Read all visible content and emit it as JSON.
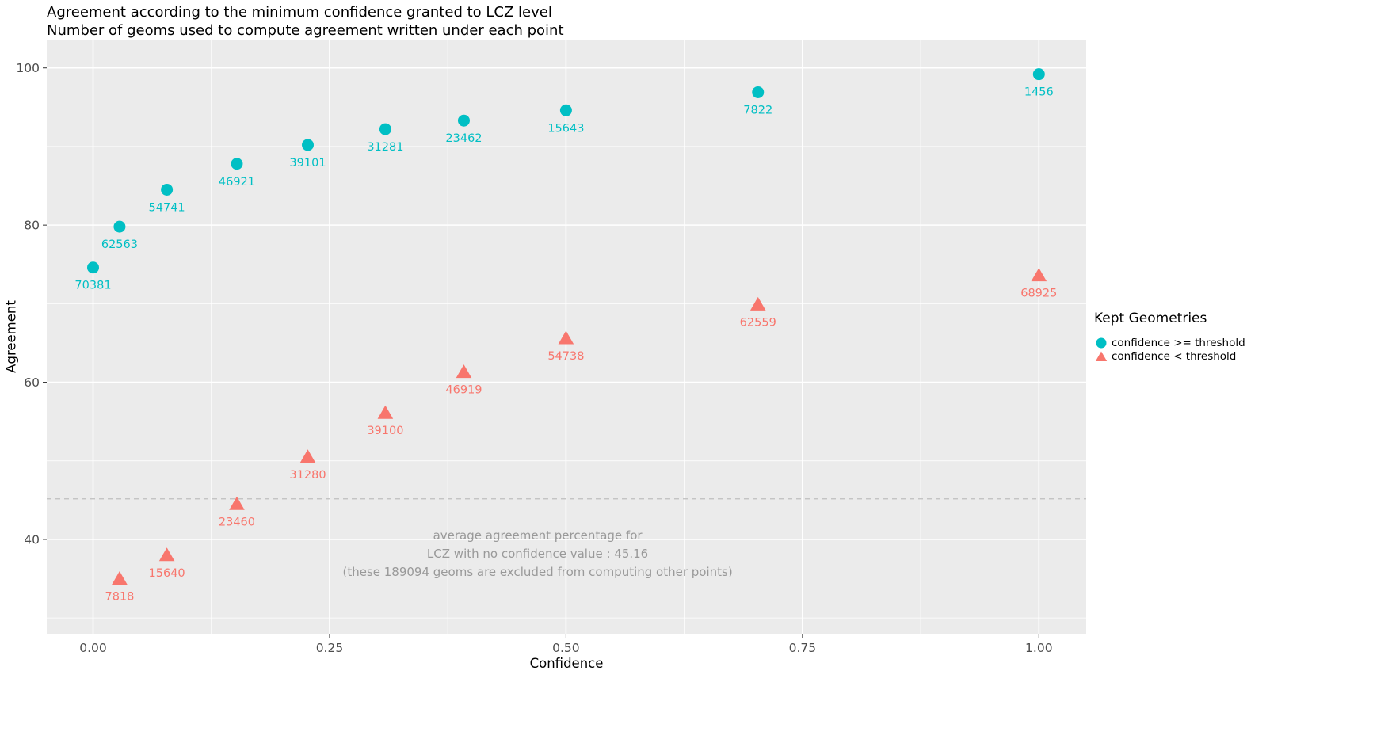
{
  "title_line1": "Agreement according to the minimum confidence granted to LCZ level",
  "title_line2": "Number of geoms used to compute agreement written under each point",
  "chart_data": {
    "type": "scatter",
    "title": "Agreement according to the minimum confidence granted to LCZ level",
    "subtitle": "Number of geoms used to compute agreement written under each point",
    "xlabel": "Confidence",
    "ylabel": "Agreement",
    "xlim": [
      -0.049,
      1.05
    ],
    "ylim": [
      28,
      103.5
    ],
    "x_ticks": [
      0.0,
      0.25,
      0.5,
      0.75,
      1.0
    ],
    "x_tick_labels": [
      "0.00",
      "0.25",
      "0.50",
      "0.75",
      "1.00"
    ],
    "y_ticks": [
      40,
      60,
      80,
      100
    ],
    "y_tick_labels": [
      "40",
      "60",
      "80",
      "100"
    ],
    "x_minor": [
      0.125,
      0.375,
      0.625,
      0.875
    ],
    "y_minor": [
      30,
      50,
      70,
      90
    ],
    "panel_bg": "#EBEBEB",
    "grid_color": "#FFFFFF",
    "tick_color": "#333333",
    "tick_label_color": "#4D4D4D",
    "grid_on": true,
    "legend_position": "right",
    "series": [
      {
        "name": "confidence >= threshold",
        "marker": "circle",
        "color": "#00BFC4",
        "points": [
          {
            "x": 0.0,
            "y": 74.6,
            "label": "70381"
          },
          {
            "x": 0.028,
            "y": 79.8,
            "label": "62563"
          },
          {
            "x": 0.078,
            "y": 84.5,
            "label": "54741"
          },
          {
            "x": 0.152,
            "y": 87.8,
            "label": "46921"
          },
          {
            "x": 0.227,
            "y": 90.2,
            "label": "39101"
          },
          {
            "x": 0.309,
            "y": 92.2,
            "label": "31281"
          },
          {
            "x": 0.392,
            "y": 93.3,
            "label": "23462"
          },
          {
            "x": 0.5,
            "y": 94.6,
            "label": "15643"
          },
          {
            "x": 0.703,
            "y": 96.9,
            "label": "7822"
          },
          {
            "x": 1.0,
            "y": 99.2,
            "label": "1456"
          }
        ]
      },
      {
        "name": "confidence < threshold",
        "marker": "triangle",
        "color": "#F8766D",
        "points": [
          {
            "x": 0.028,
            "y": 35.0,
            "label": "7818"
          },
          {
            "x": 0.078,
            "y": 38.0,
            "label": "15640"
          },
          {
            "x": 0.152,
            "y": 44.5,
            "label": "23460"
          },
          {
            "x": 0.227,
            "y": 50.5,
            "label": "31280"
          },
          {
            "x": 0.309,
            "y": 56.1,
            "label": "39100"
          },
          {
            "x": 0.392,
            "y": 61.3,
            "label": "46919"
          },
          {
            "x": 0.5,
            "y": 65.6,
            "label": "54738"
          },
          {
            "x": 0.703,
            "y": 69.9,
            "label": "62559"
          },
          {
            "x": 1.0,
            "y": 73.6,
            "label": "68925"
          }
        ]
      }
    ],
    "reference_line": {
      "y": 45.16,
      "style": "dashed",
      "color": "#BEBEBE"
    },
    "annotation": {
      "x": 0.47,
      "y": 40.5,
      "line_height": 23,
      "color": "#999999",
      "lines": [
        "average agreement percentage for",
        "LCZ with no confidence value : 45.16",
        "(these 189094 geoms are excluded from computing other points)"
      ]
    },
    "legend": {
      "title": "Kept Geometries",
      "entries": [
        {
          "label": "confidence >= threshold",
          "marker": "circle",
          "color": "#00BFC4"
        },
        {
          "label": "confidence < threshold",
          "marker": "triangle",
          "color": "#F8766D"
        }
      ]
    }
  }
}
